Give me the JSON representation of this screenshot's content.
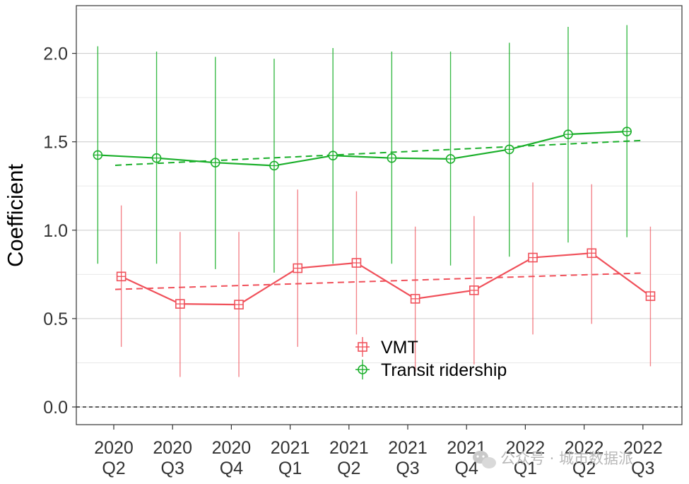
{
  "chart_data": {
    "type": "line",
    "title": "",
    "ylabel": "Coefficient",
    "xlabel": "",
    "ylim": [
      -0.1,
      2.27
    ],
    "yticks": [
      0.0,
      0.5,
      1.0,
      1.5,
      2.0
    ],
    "ytick_labels": [
      "0.0",
      "0.5",
      "1.0",
      "1.5",
      "2.0"
    ],
    "categories": [
      [
        "2020",
        "Q2"
      ],
      [
        "2020",
        "Q3"
      ],
      [
        "2020",
        "Q4"
      ],
      [
        "2021",
        "Q1"
      ],
      [
        "2021",
        "Q2"
      ],
      [
        "2021",
        "Q3"
      ],
      [
        "2021",
        "Q4"
      ],
      [
        "2022",
        "Q1"
      ],
      [
        "2022",
        "Q2"
      ],
      [
        "2022",
        "Q3"
      ]
    ],
    "grid": true,
    "reference_line": 0.0,
    "legend_position": "inside-bottom-center",
    "series": [
      {
        "name": "Transit ridership",
        "color": "#1aaf2a",
        "marker": "circle-plus",
        "values": [
          1.425,
          1.408,
          1.382,
          1.365,
          1.422,
          1.408,
          1.403,
          1.457,
          1.542,
          1.558
        ],
        "lower": [
          0.81,
          0.81,
          0.78,
          0.76,
          0.81,
          0.81,
          0.8,
          0.85,
          0.93,
          0.96
        ],
        "upper": [
          2.04,
          2.01,
          1.98,
          1.97,
          2.03,
          2.01,
          2.01,
          2.06,
          2.15,
          2.16
        ],
        "trend": [
          1.367,
          1.508
        ]
      },
      {
        "name": "VMT",
        "color": "#f0505a",
        "marker": "square-plus",
        "values": [
          0.738,
          0.583,
          0.579,
          0.785,
          0.815,
          0.612,
          0.66,
          0.845,
          0.87,
          0.627
        ],
        "lower": [
          0.34,
          0.17,
          0.17,
          0.34,
          0.41,
          0.2,
          0.24,
          0.41,
          0.47,
          0.23
        ],
        "upper": [
          1.14,
          0.99,
          0.99,
          1.23,
          1.22,
          1.02,
          1.08,
          1.27,
          1.26,
          1.02
        ],
        "trend": [
          0.665,
          0.758
        ]
      }
    ]
  },
  "watermark": {
    "icon": "wechat-icon",
    "text": "公众号 · 城市数据派"
  }
}
